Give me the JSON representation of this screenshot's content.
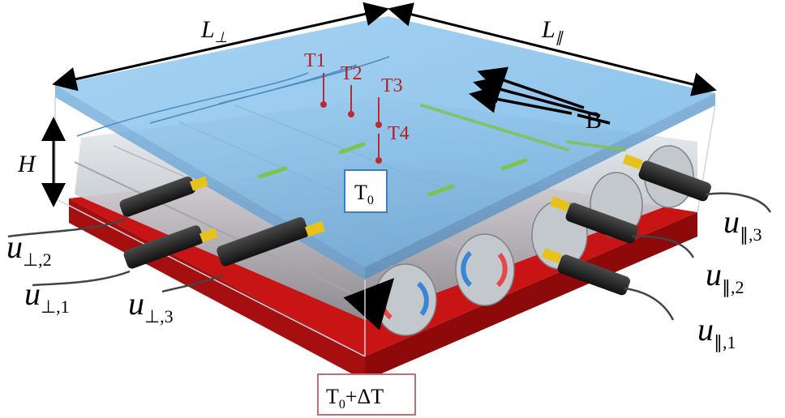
{
  "labels": {
    "l_perp": "L",
    "l_perp_sub": "⊥",
    "l_par": "L",
    "l_par_sub": "∥",
    "height": "H",
    "field": "B",
    "t0": "T",
    "t0_sub": "0",
    "t0_dt_main": "T",
    "t0_dt_sub": "0",
    "t0_dt_suffix": "+ΔT",
    "probes": [
      "T1",
      "T2",
      "T3",
      "T4"
    ],
    "u_base": "u",
    "sensors_perp": [
      "⊥,2",
      "⊥,1",
      "⊥,3"
    ],
    "sensors_par": [
      "∥,3",
      "∥,2",
      "∥,1"
    ]
  },
  "colors": {
    "fluid": "#6fb5e8",
    "fluid_edge": "#4f8fc4",
    "heater": "#c81414",
    "heater_side": "#8e0a0a",
    "cylinder": "#c9ced3",
    "probe_red": "#c0282d",
    "probe_text": "#b21f24",
    "flow_blue": "#3a86d6",
    "flow_red": "#e8474a",
    "sensor_body": "#1c1c1c",
    "sensor_tip": "#e6c21a",
    "green_stripe": "#7ec24f",
    "box_border": "#c07070"
  }
}
